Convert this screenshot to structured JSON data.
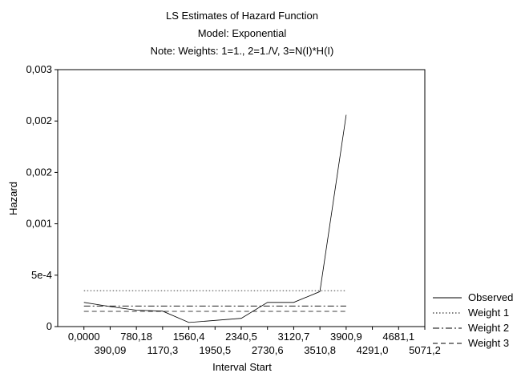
{
  "chart_data": {
    "type": "line",
    "title": "LS Estimates of Hazard Function",
    "subtitle_1": "Model: Exponential",
    "subtitle_2": "Note: Weights: 1=1., 2=1./V, 3=N(I)*H(I)",
    "xlabel": "Interval Start",
    "ylabel": "Hazard",
    "x_ticks": [
      "0,0000",
      "390,09",
      "780,18",
      "1170,3",
      "1560,4",
      "1950,5",
      "2340,5",
      "2730,6",
      "3120,7",
      "3510,8",
      "3900,9",
      "4291,0",
      "4681,1",
      "5071,2"
    ],
    "x_tick_values": [
      0,
      390.09,
      780.18,
      1170.3,
      1560.4,
      1950.5,
      2340.5,
      2730.6,
      3120.7,
      3510.8,
      3900.9,
      4291.0,
      4681.1,
      5071.2
    ],
    "xlim": [
      -390.09,
      5071.2
    ],
    "y_ticks": [
      "0",
      "5e-4",
      "0,001",
      "0,002",
      "0,002",
      "0,003"
    ],
    "y_tick_values": [
      0,
      0.0005,
      0.001,
      0.0015,
      0.002,
      0.0025
    ],
    "ylim": [
      0,
      0.0025
    ],
    "grid": false,
    "legend_position": "right",
    "x": [
      0,
      390.09,
      780.18,
      1170.3,
      1560.4,
      1950.5,
      2340.5,
      2730.6,
      3120.7,
      3510.8,
      3900.9
    ],
    "series": [
      {
        "name": "Observed",
        "style": "solid",
        "values": [
          0.000235,
          0.000195,
          0.00016,
          0.00015,
          4e-05,
          6e-05,
          8e-05,
          0.000235,
          0.000235,
          0.00034,
          0.00206
        ]
      },
      {
        "name": "Weight 1",
        "style": "dotted",
        "values": [
          0.00035,
          0.00035,
          0.00035,
          0.00035,
          0.00035,
          0.00035,
          0.00035,
          0.00035,
          0.00035,
          0.00035,
          0.00035
        ]
      },
      {
        "name": "Weight 2",
        "style": "dashdot",
        "values": [
          0.0002,
          0.0002,
          0.0002,
          0.0002,
          0.0002,
          0.0002,
          0.0002,
          0.0002,
          0.0002,
          0.0002,
          0.0002
        ]
      },
      {
        "name": "Weight 3",
        "style": "dashed",
        "values": [
          0.000148,
          0.000148,
          0.000148,
          0.000148,
          0.000148,
          0.000148,
          0.000148,
          0.000148,
          0.000148,
          0.000148,
          0.000148
        ]
      }
    ]
  }
}
